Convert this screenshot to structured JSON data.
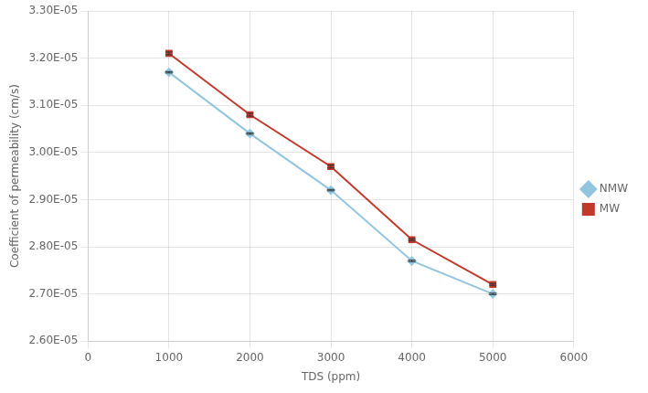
{
  "chart_data": {
    "type": "line",
    "x": [
      1000,
      2000,
      3000,
      4000,
      5000
    ],
    "series": [
      {
        "name": "NMW",
        "color": "#92c5de",
        "marker": "diamond",
        "values": [
          3.17e-05,
          3.04e-05,
          2.92e-05,
          2.77e-05,
          2.7e-05
        ],
        "errors": [
          1.5e-08,
          1.5e-08,
          1.5e-08,
          1.5e-08,
          1.5e-08
        ]
      },
      {
        "name": "MW",
        "color": "#c0392b",
        "marker": "square",
        "values": [
          3.21e-05,
          3.08e-05,
          2.97e-05,
          2.815e-05,
          2.72e-05
        ],
        "errors": [
          3e-08,
          3e-08,
          3e-08,
          2e-08,
          2e-08
        ]
      }
    ],
    "xlabel": "TDS (ppm)",
    "ylabel": "Coefficient of permeability (cm/s)",
    "xlim": [
      0,
      6000
    ],
    "ylim": [
      2.6e-05,
      3.3e-05
    ],
    "xticks": [
      0,
      1000,
      2000,
      3000,
      4000,
      5000,
      6000
    ],
    "yticks": [
      {
        "value": 2.6e-05,
        "label": "2.60E-05"
      },
      {
        "value": 2.7e-05,
        "label": "2.70E-05"
      },
      {
        "value": 2.8e-05,
        "label": "2.80E-05"
      },
      {
        "value": 2.9e-05,
        "label": "2.90E-05"
      },
      {
        "value": 3e-05,
        "label": "3.00E-05"
      },
      {
        "value": 3.1e-05,
        "label": "3.10E-05"
      },
      {
        "value": 3.2e-05,
        "label": "3.20E-05"
      },
      {
        "value": 3.3e-05,
        "label": "3.30E-05"
      }
    ],
    "grid": true,
    "legend": "right"
  }
}
